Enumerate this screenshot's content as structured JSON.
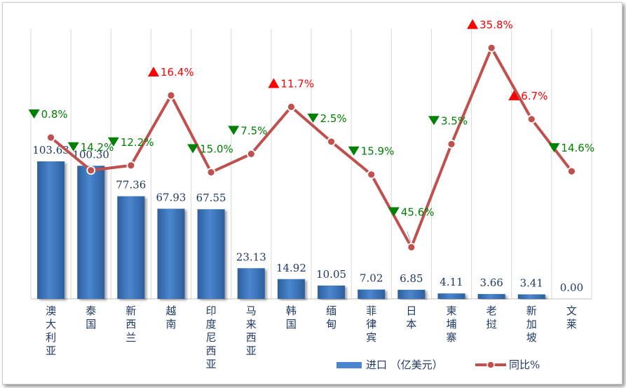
{
  "chart_data": {
    "type": "bar",
    "title": "",
    "xlabel": "",
    "ylabel": "",
    "grid": "vertical",
    "legend_position": "bottom-right",
    "categories": [
      "澳\n大\n利\n亚",
      "泰\n国",
      "新\n西\n兰",
      "越\n南",
      "印\n度\n尼\n西\n亚",
      "马\n来\n西\n亚",
      "韩\n国",
      "缅\n甸",
      "菲\n律\n宾",
      "日\n本",
      "柬\n埔\n寨",
      "老\n挝",
      "新\n加\n坡",
      "文\n莱"
    ],
    "series": [
      {
        "name": "进口 （亿美元）",
        "type": "bar",
        "color": "#3f78c0",
        "values": [
          103.63,
          100.3,
          77.36,
          67.93,
          67.55,
          23.13,
          14.92,
          10.05,
          7.02,
          6.85,
          4.11,
          3.66,
          3.41,
          0.0
        ],
        "labels": [
          "103.63",
          "100.30",
          "77.36",
          "67.93",
          "67.55",
          "23.13",
          "14.92",
          "10.05",
          "7.02",
          "6.85",
          "4.11",
          "3.66",
          "3.41",
          "0.00"
        ]
      },
      {
        "name": "同比%",
        "type": "line",
        "color": "#c0504d",
        "values": [
          -0.8,
          -14.2,
          -12.2,
          16.4,
          -15.0,
          -7.5,
          11.7,
          -2.5,
          -15.9,
          -45.6,
          -3.5,
          35.8,
          6.7,
          -14.6
        ],
        "labels": [
          "0.8%",
          "14.2%",
          "12.2%",
          "16.4%",
          "15.0%",
          "7.5%",
          "11.7%",
          "2.5%",
          "15.9%",
          "45.6%",
          "3.5%",
          "35.8%",
          "6.7%",
          "14.6%"
        ]
      }
    ],
    "colors": {
      "up": "#ff0000",
      "down": "#008000",
      "grid": "#d9d9d9",
      "axis_text": "#1f3864"
    }
  }
}
